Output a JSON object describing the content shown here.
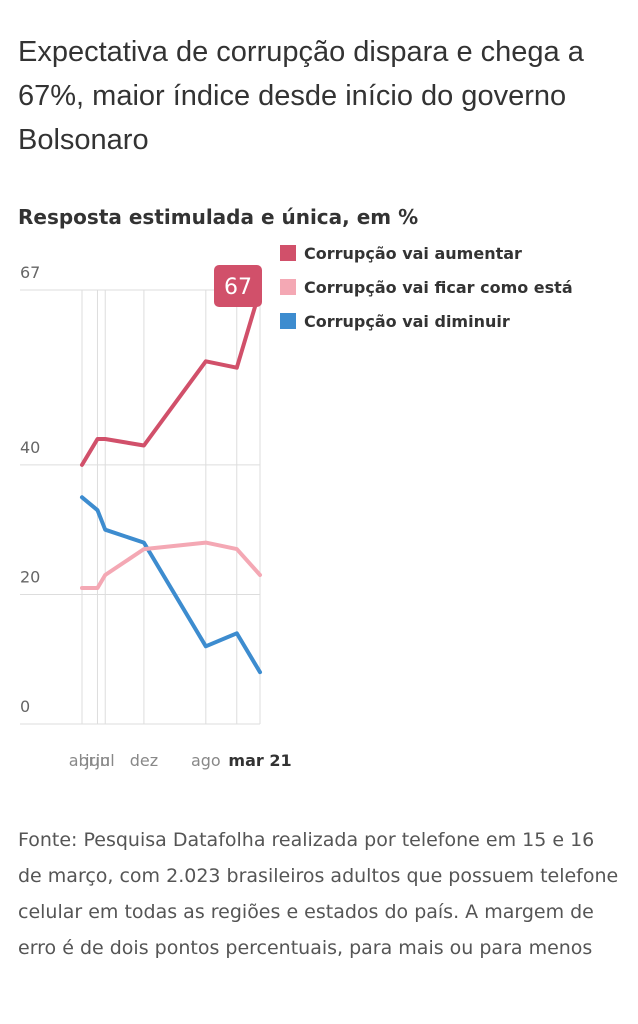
{
  "title": "Expectativa de corrupção dispara e chega a 67%, maior índice desde início do governo Bolsonaro",
  "subtitle": "Resposta estimulada e única, em %",
  "source": "Fonte: Pesquisa Datafolha realizada por telefone em 15 e 16 de março, com 2.023 brasileiros adultos que possuem telefone celular em todas as regiões e estados do país. A margem de erro é de dois pontos percentuais, para mais ou para menos",
  "chart_data": {
    "type": "line",
    "x": [
      "abr",
      "jun",
      "jul",
      "dez",
      "ago",
      "dez",
      "mar 21"
    ],
    "x_months": [
      0,
      2,
      3,
      8,
      16,
      20,
      23
    ],
    "x_tick_labels": [
      {
        "label": "abr",
        "i": 0,
        "bold": false
      },
      {
        "label": "jun",
        "i": 1,
        "bold": false
      },
      {
        "label": "jul",
        "i": 2,
        "bold": false
      },
      {
        "label": "dez",
        "i": 3,
        "bold": false
      },
      {
        "label": "ago",
        "i": 4,
        "bold": false
      },
      {
        "label": "mar 21",
        "i": 6,
        "bold": true
      }
    ],
    "y_ticks": [
      0,
      20,
      40,
      67
    ],
    "ylim": [
      0,
      67
    ],
    "series": [
      {
        "name": "Corrupção vai aumentar",
        "color": "#d1506a",
        "values": [
          40,
          44,
          44,
          43,
          56,
          55,
          67
        ]
      },
      {
        "name": "Corrupção vai ficar como está",
        "color": "#f4a8b4",
        "values": [
          21,
          21,
          23,
          27,
          28,
          27,
          23
        ]
      },
      {
        "name": "Corrupção vai diminuir",
        "color": "#3d8ccf",
        "values": [
          35,
          33,
          30,
          28,
          12,
          14,
          8
        ]
      }
    ],
    "highlight": {
      "series": 0,
      "index": 6,
      "label": "67"
    },
    "legend_position": "top-right",
    "grid": true
  }
}
